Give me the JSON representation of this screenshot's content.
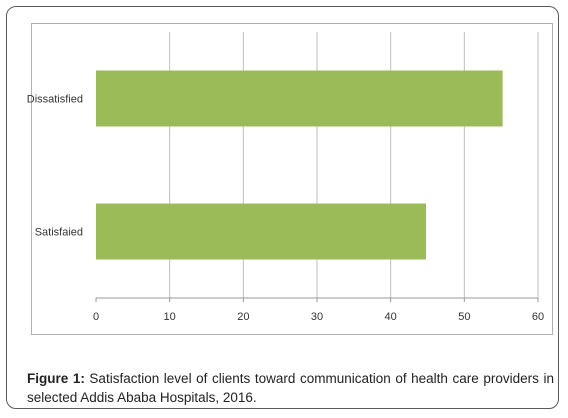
{
  "chart_data": {
    "type": "bar",
    "orientation": "horizontal",
    "categories": [
      "Dissatisfied",
      "Satisfaied"
    ],
    "values": [
      55.2,
      44.8
    ],
    "xlim": [
      0,
      60
    ],
    "xticks": [
      0,
      10,
      20,
      30,
      40,
      50,
      60
    ],
    "grid": true,
    "bar_color": "#9bbb59",
    "title": "",
    "xlabel": "",
    "ylabel": ""
  },
  "caption": {
    "label": "Figure 1:",
    "text": " Satisfaction level of clients toward communication of health care providers in selected Addis Ababa Hospitals, 2016."
  }
}
